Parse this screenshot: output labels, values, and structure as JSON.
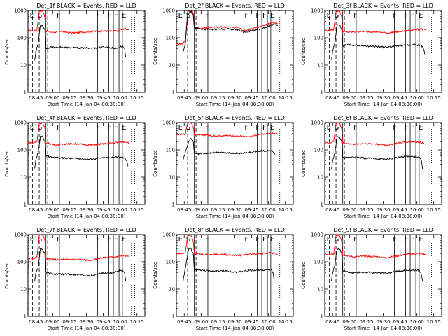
{
  "chart_data": {
    "type": "line",
    "scale": "log",
    "ylim": [
      1,
      1000
    ],
    "ylabel": "Counts/sec",
    "xlabel": "Start Time (14-Jan-04 08:38:00)",
    "x_ticks": [
      "08:45",
      "09:00",
      "09:15",
      "09:30",
      "09:45",
      "10:00",
      "10:15"
    ],
    "y_ticks": [
      "1",
      "10",
      "100",
      "1000"
    ],
    "x_range_minutes": [
      0,
      104
    ],
    "tick_minutes": [
      7,
      22,
      37,
      52,
      67,
      82,
      97
    ],
    "colors": {
      "events": "#000000",
      "lld": "#ff0000"
    },
    "flags": {
      "solid_lines_min": [
        16,
        28,
        62,
        72,
        76,
        81,
        84
      ],
      "dashed_lines_min": [
        4,
        10,
        17.5
      ],
      "dotted_lines_min": [
        92,
        95
      ],
      "letters": [
        {
          "text": "E",
          "min": 1
        },
        {
          "text": "S",
          "min": 8
        },
        {
          "text": "F",
          "min": 25
        },
        {
          "text": "F",
          "min": 60
        },
        {
          "text": "F",
          "min": 70
        },
        {
          "text": "F",
          "min": 76
        },
        {
          "text": "E",
          "min": 83
        }
      ]
    },
    "panels": [
      {
        "title": "Det_1f BLACK = Events, RED = LLD",
        "lld": [
          [
            0,
            180
          ],
          [
            5,
            180
          ],
          [
            8,
            200
          ],
          [
            10,
            950
          ],
          [
            13,
            980
          ],
          [
            15,
            600
          ],
          [
            16,
            180
          ],
          [
            20,
            160
          ],
          [
            30,
            170
          ],
          [
            40,
            150
          ],
          [
            55,
            170
          ],
          [
            70,
            175
          ],
          [
            80,
            180
          ],
          [
            86,
            220
          ],
          [
            90,
            200
          ]
        ],
        "events": [
          [
            6,
            15
          ],
          [
            7,
            30
          ],
          [
            9,
            60
          ],
          [
            11,
            300
          ],
          [
            13,
            280
          ],
          [
            15,
            200
          ],
          [
            16,
            40
          ],
          [
            20,
            45
          ],
          [
            30,
            45
          ],
          [
            45,
            42
          ],
          [
            60,
            43
          ],
          [
            70,
            46
          ],
          [
            78,
            40
          ],
          [
            84,
            50
          ],
          [
            86,
            40
          ],
          [
            87,
            20
          ]
        ]
      },
      {
        "title": "Det_2f BLACK = Events, RED = LLD",
        "lld": [
          [
            0,
            60
          ],
          [
            5,
            60
          ],
          [
            8,
            80
          ],
          [
            10,
            950
          ],
          [
            13,
            980
          ],
          [
            15,
            800
          ],
          [
            16,
            260
          ],
          [
            20,
            220
          ],
          [
            30,
            240
          ],
          [
            45,
            250
          ],
          [
            55,
            240
          ],
          [
            60,
            180
          ],
          [
            75,
            260
          ],
          [
            85,
            360
          ],
          [
            90,
            320
          ]
        ],
        "events": [
          [
            6,
            30
          ],
          [
            8,
            60
          ],
          [
            10,
            700
          ],
          [
            13,
            900
          ],
          [
            15,
            700
          ],
          [
            16,
            230
          ],
          [
            20,
            210
          ],
          [
            30,
            200
          ],
          [
            45,
            210
          ],
          [
            55,
            200
          ],
          [
            60,
            160
          ],
          [
            75,
            210
          ],
          [
            85,
            300
          ],
          [
            90,
            280
          ]
        ]
      },
      {
        "title": "Det_3f BLACK = Events, RED = LLD",
        "lld": [
          [
            0,
            180
          ],
          [
            5,
            180
          ],
          [
            8,
            200
          ],
          [
            10,
            950
          ],
          [
            13,
            980
          ],
          [
            15,
            600
          ],
          [
            16,
            170
          ],
          [
            20,
            160
          ],
          [
            35,
            170
          ],
          [
            45,
            165
          ],
          [
            55,
            150
          ],
          [
            70,
            175
          ],
          [
            80,
            200
          ],
          [
            86,
            210
          ],
          [
            90,
            190
          ]
        ],
        "events": [
          [
            6,
            15
          ],
          [
            7,
            30
          ],
          [
            9,
            70
          ],
          [
            11,
            300
          ],
          [
            13,
            300
          ],
          [
            15,
            200
          ],
          [
            16,
            50
          ],
          [
            20,
            55
          ],
          [
            35,
            50
          ],
          [
            45,
            48
          ],
          [
            55,
            45
          ],
          [
            70,
            52
          ],
          [
            80,
            55
          ],
          [
            86,
            52
          ],
          [
            88,
            40
          ],
          [
            89,
            25
          ]
        ]
      },
      {
        "title": "Det_4f BLACK = Events, RED = LLD",
        "lld": [
          [
            0,
            180
          ],
          [
            5,
            180
          ],
          [
            8,
            200
          ],
          [
            10,
            950
          ],
          [
            13,
            980
          ],
          [
            15,
            600
          ],
          [
            16,
            180
          ],
          [
            25,
            150
          ],
          [
            35,
            170
          ],
          [
            45,
            165
          ],
          [
            55,
            150
          ],
          [
            70,
            170
          ],
          [
            80,
            190
          ],
          [
            86,
            200
          ],
          [
            90,
            180
          ]
        ],
        "events": [
          [
            6,
            20
          ],
          [
            7,
            40
          ],
          [
            9,
            80
          ],
          [
            11,
            300
          ],
          [
            13,
            300
          ],
          [
            15,
            200
          ],
          [
            16,
            60
          ],
          [
            20,
            55
          ],
          [
            30,
            50
          ],
          [
            45,
            48
          ],
          [
            55,
            45
          ],
          [
            70,
            52
          ],
          [
            80,
            55
          ],
          [
            86,
            50
          ],
          [
            88,
            40
          ],
          [
            89,
            25
          ]
        ]
      },
      {
        "title": "Det_5f BLACK = Events, RED = LLD",
        "lld": [
          [
            0,
            360
          ],
          [
            5,
            360
          ],
          [
            8,
            380
          ],
          [
            10,
            980
          ],
          [
            13,
            980
          ],
          [
            15,
            700
          ],
          [
            16,
            360
          ],
          [
            25,
            350
          ],
          [
            35,
            320
          ],
          [
            45,
            330
          ],
          [
            55,
            320
          ],
          [
            65,
            300
          ],
          [
            75,
            380
          ],
          [
            85,
            400
          ],
          [
            90,
            380
          ]
        ],
        "events": [
          [
            6,
            40
          ],
          [
            8,
            80
          ],
          [
            11,
            200
          ],
          [
            13,
            250
          ],
          [
            15,
            200
          ],
          [
            16,
            70
          ],
          [
            25,
            75
          ],
          [
            35,
            80
          ],
          [
            45,
            78
          ],
          [
            55,
            75
          ],
          [
            65,
            80
          ],
          [
            75,
            90
          ],
          [
            85,
            95
          ],
          [
            88,
            70
          ]
        ]
      },
      {
        "title": "Det_6f BLACK = Events, RED = LLD",
        "lld": [
          [
            0,
            180
          ],
          [
            5,
            180
          ],
          [
            8,
            200
          ],
          [
            10,
            950
          ],
          [
            13,
            980
          ],
          [
            15,
            600
          ],
          [
            16,
            180
          ],
          [
            25,
            160
          ],
          [
            35,
            170
          ],
          [
            45,
            165
          ],
          [
            55,
            150
          ],
          [
            65,
            175
          ],
          [
            75,
            200
          ],
          [
            85,
            190
          ],
          [
            90,
            170
          ]
        ],
        "events": [
          [
            6,
            20
          ],
          [
            7,
            40
          ],
          [
            9,
            80
          ],
          [
            11,
            300
          ],
          [
            13,
            300
          ],
          [
            15,
            200
          ],
          [
            16,
            50
          ],
          [
            25,
            55
          ],
          [
            35,
            50
          ],
          [
            45,
            48
          ],
          [
            55,
            45
          ],
          [
            65,
            52
          ],
          [
            75,
            60
          ],
          [
            84,
            55
          ],
          [
            86,
            40
          ],
          [
            87,
            20
          ]
        ]
      },
      {
        "title": "Det_7f BLACK = Events, RED = LLD",
        "lld": [
          [
            0,
            130
          ],
          [
            5,
            130
          ],
          [
            8,
            150
          ],
          [
            10,
            950
          ],
          [
            13,
            980
          ],
          [
            15,
            600
          ],
          [
            16,
            130
          ],
          [
            25,
            120
          ],
          [
            35,
            120
          ],
          [
            45,
            125
          ],
          [
            55,
            110
          ],
          [
            65,
            140
          ],
          [
            75,
            150
          ],
          [
            85,
            170
          ],
          [
            90,
            160
          ]
        ],
        "events": [
          [
            6,
            20
          ],
          [
            7,
            40
          ],
          [
            9,
            60
          ],
          [
            11,
            300
          ],
          [
            13,
            280
          ],
          [
            15,
            200
          ],
          [
            16,
            40
          ],
          [
            25,
            35
          ],
          [
            35,
            35
          ],
          [
            45,
            33
          ],
          [
            55,
            30
          ],
          [
            65,
            38
          ],
          [
            75,
            40
          ],
          [
            84,
            50
          ],
          [
            86,
            40
          ],
          [
            87,
            20
          ]
        ]
      },
      {
        "title": "Det_8f BLACK = Events, RED = LLD",
        "lld": [
          [
            0,
            200
          ],
          [
            5,
            200
          ],
          [
            8,
            220
          ],
          [
            10,
            950
          ],
          [
            13,
            980
          ],
          [
            15,
            600
          ],
          [
            16,
            200
          ],
          [
            25,
            180
          ],
          [
            35,
            190
          ],
          [
            45,
            180
          ],
          [
            55,
            170
          ],
          [
            65,
            190
          ],
          [
            75,
            200
          ],
          [
            85,
            210
          ],
          [
            90,
            190
          ]
        ],
        "events": [
          [
            6,
            20
          ],
          [
            8,
            60
          ],
          [
            11,
            300
          ],
          [
            13,
            300
          ],
          [
            15,
            200
          ],
          [
            16,
            50
          ],
          [
            25,
            48
          ],
          [
            35,
            45
          ],
          [
            45,
            46
          ],
          [
            55,
            42
          ],
          [
            65,
            48
          ],
          [
            75,
            50
          ],
          [
            84,
            52
          ],
          [
            86,
            40
          ],
          [
            87,
            20
          ]
        ]
      },
      {
        "title": "Det_9f BLACK = Events, RED = LLD",
        "lld": [
          [
            0,
            180
          ],
          [
            5,
            180
          ],
          [
            8,
            200
          ],
          [
            10,
            950
          ],
          [
            13,
            980
          ],
          [
            15,
            600
          ],
          [
            16,
            180
          ],
          [
            25,
            150
          ],
          [
            35,
            160
          ],
          [
            45,
            155
          ],
          [
            55,
            140
          ],
          [
            65,
            165
          ],
          [
            75,
            190
          ],
          [
            85,
            200
          ],
          [
            90,
            180
          ]
        ],
        "events": [
          [
            6,
            20
          ],
          [
            7,
            40
          ],
          [
            9,
            80
          ],
          [
            11,
            300
          ],
          [
            13,
            300
          ],
          [
            15,
            200
          ],
          [
            16,
            45
          ],
          [
            25,
            40
          ],
          [
            35,
            42
          ],
          [
            45,
            40
          ],
          [
            55,
            38
          ],
          [
            65,
            45
          ],
          [
            75,
            50
          ],
          [
            84,
            48
          ],
          [
            86,
            35
          ],
          [
            87,
            20
          ]
        ]
      }
    ]
  }
}
